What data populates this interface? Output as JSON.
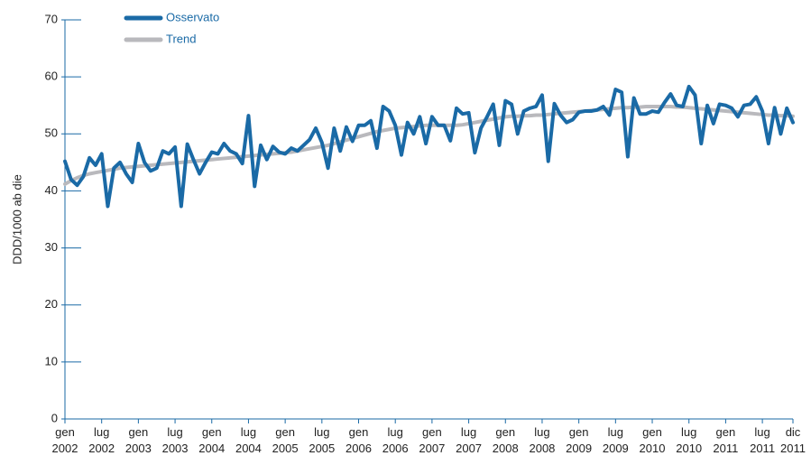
{
  "chart_data": {
    "type": "line",
    "ylabel": "DDD/1000 ab die",
    "categories": [
      "gen 2002",
      null,
      null,
      null,
      null,
      null,
      "lug 2002",
      null,
      null,
      null,
      null,
      null,
      "gen 2003",
      null,
      null,
      null,
      null,
      null,
      "lug 2003",
      null,
      null,
      null,
      null,
      null,
      "gen 2004",
      null,
      null,
      null,
      null,
      null,
      "lug 2004",
      null,
      null,
      null,
      null,
      null,
      "gen 2005",
      null,
      null,
      null,
      null,
      null,
      "lug 2005",
      null,
      null,
      null,
      null,
      null,
      "gen 2006",
      null,
      null,
      null,
      null,
      null,
      "lug 2006",
      null,
      null,
      null,
      null,
      null,
      "gen 2007",
      null,
      null,
      null,
      null,
      null,
      "lug 2007",
      null,
      null,
      null,
      null,
      null,
      "gen 2008",
      null,
      null,
      null,
      null,
      null,
      "lug 2008",
      null,
      null,
      null,
      null,
      null,
      "gen 2009",
      null,
      null,
      null,
      null,
      null,
      "lug 2009",
      null,
      null,
      null,
      null,
      null,
      "gen 2010",
      null,
      null,
      null,
      null,
      null,
      "lug 2010",
      null,
      null,
      null,
      null,
      null,
      "gen 2011",
      null,
      null,
      null,
      null,
      null,
      "lug 2011",
      null,
      null,
      null,
      null,
      "dic 2011"
    ],
    "series": [
      {
        "name": "Osservato",
        "color": "#1a6aa6",
        "values": [
          45.2,
          42,
          41,
          42.5,
          45.8,
          44.5,
          46.5,
          37.3,
          44,
          45,
          43,
          41.5,
          48.3,
          45,
          43.5,
          44,
          47,
          46.5,
          47.7,
          37.3,
          48.2,
          45.5,
          43,
          45,
          46.8,
          46.5,
          48.3,
          47,
          46.5,
          44.8,
          53.2,
          40.8,
          48,
          45.5,
          47.8,
          46.8,
          46.5,
          47.5,
          47,
          48,
          49,
          51,
          48.5,
          44,
          51,
          47,
          51.2,
          48.7,
          51.5,
          51.5,
          52.3,
          47.5,
          54.8,
          54,
          51.5,
          46.3,
          52,
          50,
          53,
          48.3,
          53,
          51.5,
          51.5,
          48.8,
          54.5,
          53.5,
          53.7,
          46.7,
          51,
          53,
          55.2,
          48,
          55.8,
          55.2,
          50,
          54,
          54.5,
          54.8,
          56.8,
          45.2,
          55.3,
          53.3,
          52,
          52.5,
          53.8,
          54,
          54,
          54.2,
          54.8,
          53.3,
          57.8,
          57.3,
          46,
          56.3,
          53.5,
          53.5,
          54,
          53.8,
          55.5,
          57,
          55,
          54.8,
          58.3,
          56.8,
          48.3,
          55,
          51.8,
          55.2,
          55,
          54.5,
          53,
          55,
          55.2,
          56.5,
          54,
          48.3,
          54.6,
          50,
          54.5,
          52
        ]
      },
      {
        "name": "Trend",
        "color": "#b9b9bd",
        "values": [
          41.2,
          41.8,
          42.3,
          42.7,
          43,
          43.2,
          43.4,
          43.6,
          43.8,
          44,
          44.1,
          44.2,
          44.3,
          44.4,
          44.5,
          44.6,
          44.7,
          44.8,
          44.9,
          45,
          45.1,
          45.2,
          45.3,
          45.4,
          45.5,
          45.6,
          45.7,
          45.8,
          45.9,
          46,
          46.1,
          46.2,
          46.3,
          46.4,
          46.5,
          46.6,
          46.7,
          46.8,
          47,
          47.2,
          47.4,
          47.6,
          47.8,
          48,
          48.3,
          48.6,
          48.9,
          49.2,
          49.5,
          49.8,
          50.1,
          50.4,
          50.6,
          50.8,
          51,
          51.1,
          51.2,
          51.3,
          51.4,
          51.5,
          51.5,
          51.5,
          51.5,
          51.5,
          51.5,
          51.6,
          51.8,
          52,
          52.2,
          52.4,
          52.6,
          52.8,
          53,
          53.1,
          53.1,
          53.2,
          53.2,
          53.3,
          53.3,
          53.4,
          53.5,
          53.6,
          53.7,
          53.8,
          53.9,
          54,
          54.1,
          54.2,
          54.3,
          54.4,
          54.5,
          54.6,
          54.6,
          54.7,
          54.7,
          54.8,
          54.8,
          54.8,
          54.8,
          54.8,
          54.7,
          54.7,
          54.6,
          54.5,
          54.4,
          54.3,
          54.2,
          54.1,
          54,
          53.9,
          53.8,
          53.7,
          53.6,
          53.5,
          53.4,
          53.3,
          53.3,
          53.2,
          53.2,
          53.1
        ]
      }
    ],
    "ylim": [
      0,
      70
    ],
    "yticks": [
      0,
      10,
      20,
      30,
      40,
      50,
      60,
      70
    ]
  }
}
